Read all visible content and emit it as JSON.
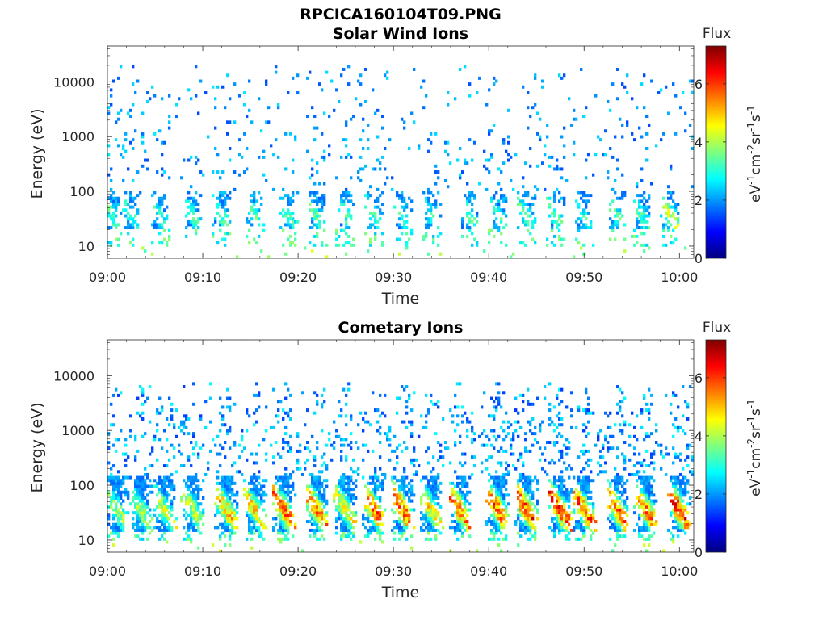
{
  "figure": {
    "title": "RPCICA160104T09.PNG"
  },
  "colors": {
    "axis": "#262626",
    "colormap": [
      "#00007f",
      "#0000ff",
      "#007fff",
      "#00ffff",
      "#7fff7f",
      "#ffff00",
      "#ff7f00",
      "#ff0000",
      "#7f0000"
    ]
  },
  "chart_data": [
    {
      "type": "heatmap",
      "title": "Solar Wind Ions",
      "xlabel": "Time",
      "ylabel": "Energy (eV)",
      "yscale": "log",
      "ylim": [
        6,
        45000
      ],
      "x_ticks": [
        "09:00",
        "09:10",
        "09:20",
        "09:30",
        "09:40",
        "09:50",
        "10:00"
      ],
      "x_range_minutes": [
        0,
        61.5
      ],
      "y_ticks": [
        10,
        100,
        1000,
        10000
      ],
      "y_tick_labels": [
        "10",
        "100",
        "1000",
        "10000"
      ],
      "colorbar": {
        "label": "Flux",
        "unit": "eV-1cm-2sr-1s-1",
        "range": [
          0,
          7.3
        ],
        "ticks": [
          "0",
          "2",
          "4",
          "6"
        ]
      },
      "bursts_minutes": [
        0.5,
        2.5,
        5.5,
        9,
        12,
        15.5,
        19,
        22,
        25,
        28,
        31,
        34,
        38,
        41,
        44,
        47,
        50,
        53.5,
        56,
        59
      ],
      "burst_core_flux": [
        3.6,
        3.4,
        3.3,
        3.4,
        3.5,
        3.6,
        3.5,
        3.6,
        3.5,
        3.5,
        3.4,
        3.3,
        3.6,
        3.4,
        3.6,
        3.6,
        3.4,
        3.6,
        3.5,
        4.4
      ],
      "core_energy_range_eV": [
        20,
        100
      ],
      "sparse_background_energy_range_eV": [
        100,
        20000
      ],
      "background_flux_range": [
        1.4,
        2.6
      ],
      "grid": false
    },
    {
      "type": "heatmap",
      "title": "Cometary Ions",
      "xlabel": "Time",
      "ylabel": "Energy (eV)",
      "yscale": "log",
      "ylim": [
        6,
        45000
      ],
      "x_ticks": [
        "09:00",
        "09:10",
        "09:20",
        "09:30",
        "09:40",
        "09:50",
        "10:00"
      ],
      "x_range_minutes": [
        0,
        61.5
      ],
      "y_ticks": [
        10,
        100,
        1000,
        10000
      ],
      "y_tick_labels": [
        "10",
        "100",
        "1000",
        "10000"
      ],
      "colorbar": {
        "label": "Flux",
        "unit": "eV-1cm-2sr-1s-1",
        "range": [
          0,
          7.3
        ],
        "ticks": [
          "0",
          "2",
          "4",
          "6"
        ]
      },
      "bursts_minutes": [
        1,
        3.5,
        6,
        9,
        12.5,
        15.5,
        18.5,
        22,
        25,
        28,
        31,
        34,
        37,
        41,
        44,
        47.5,
        50,
        53.5,
        56.5,
        60
      ],
      "burst_core_flux": [
        4.3,
        4.3,
        4.5,
        4.6,
        5.4,
        5.3,
        6.1,
        6.0,
        4.8,
        6.2,
        6.3,
        5.1,
        6.0,
        6.3,
        6.4,
        6.4,
        6.2,
        6.2,
        5.9,
        6.6
      ],
      "core_energy_range_eV": [
        15,
        150
      ],
      "sparse_background_energy_range_eV": [
        150,
        8000
      ],
      "background_flux_range": [
        1.3,
        2.8
      ],
      "grid": false
    }
  ]
}
